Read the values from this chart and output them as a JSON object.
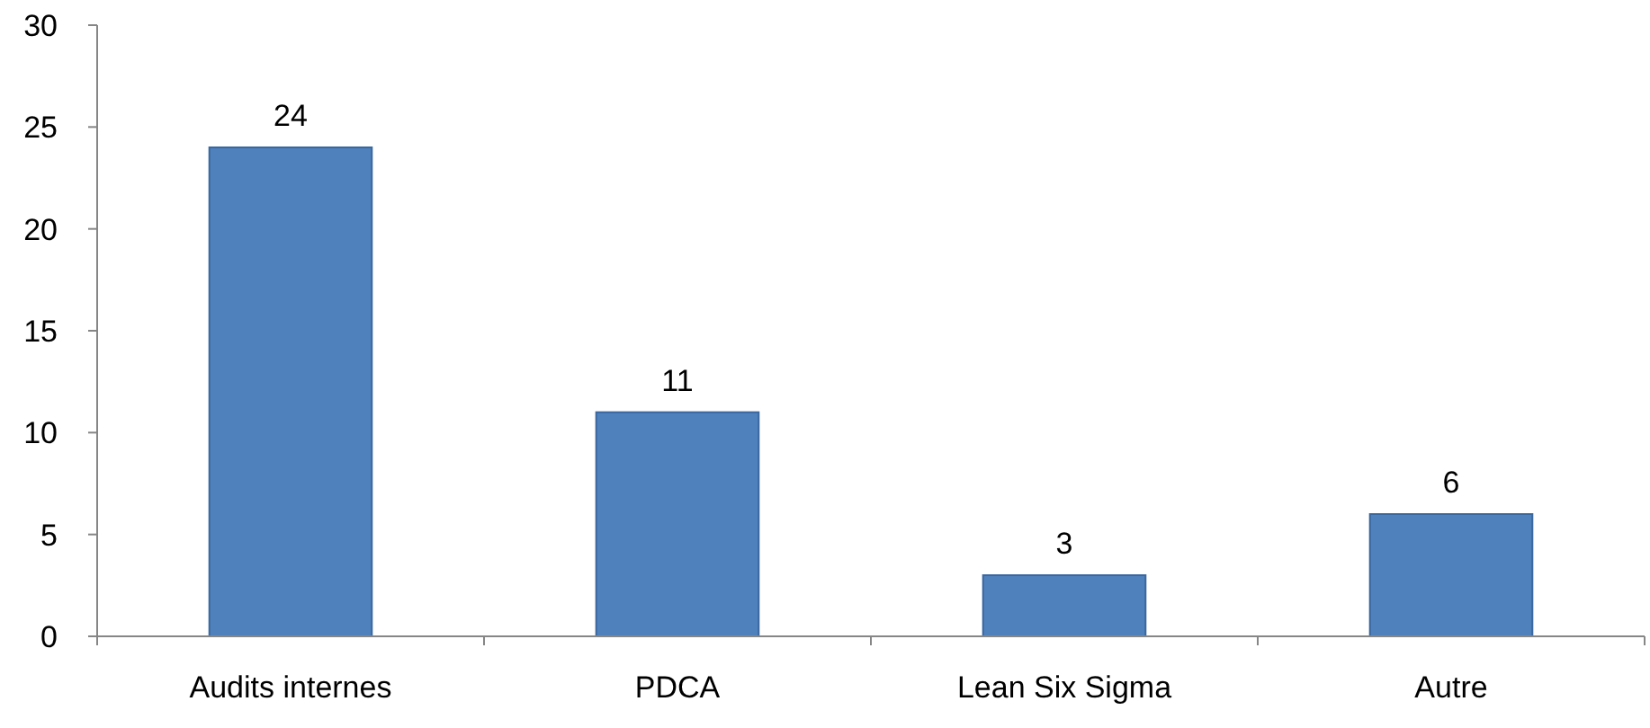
{
  "chart_data": {
    "type": "bar",
    "categories": [
      "Audits internes",
      "PDCA",
      "Lean Six Sigma",
      "Autre"
    ],
    "values": [
      24,
      11,
      3,
      6
    ],
    "color": "#4f81bd",
    "ylim": [
      0,
      30
    ],
    "yticks": [
      0,
      5,
      10,
      15,
      20,
      25,
      30
    ],
    "data_labels": true
  }
}
